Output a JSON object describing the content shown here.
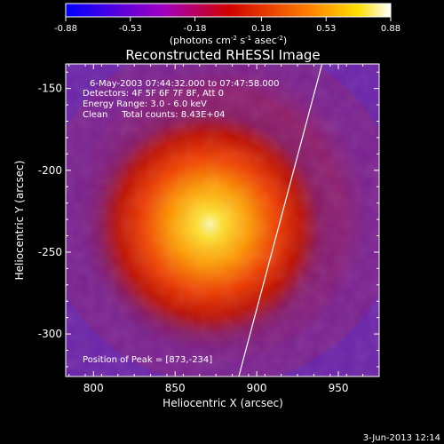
{
  "chart_data": {
    "type": "heatmap",
    "title": "Reconstructed RHESSI Image",
    "xlabel": "Heliocentric X (arcsec)",
    "ylabel": "Heliocentric Y (arcsec)",
    "xlim": [
      783,
      975
    ],
    "ylim": [
      -326,
      -135
    ],
    "x_ticks": [
      800,
      850,
      900,
      950
    ],
    "y_ticks": [
      -150,
      -200,
      -250,
      -300
    ],
    "colorbar": {
      "ticks": [
        -0.88,
        -0.53,
        -0.18,
        0.18,
        0.53,
        0.88
      ],
      "range": [
        -0.88,
        0.88
      ],
      "label": "(photons cm",
      "label_exp1": "-2",
      "label_mid": " s",
      "label_exp2": "-1",
      "label_mid2": " asec",
      "label_exp3": "-2",
      "label_end": ")"
    },
    "info_lines": [
      "6-May-2003 07:44:32.000 to 07:47:58.000",
      "Detectors: 4F 5F 6F 7F 8F, Att 0",
      "Energy Range: 3.0 - 6.0 keV",
      "Clean     Total counts: 8.43E+04"
    ],
    "peak_text": "Position of Peak = [873,-234]",
    "peak": [
      873,
      -234
    ],
    "limb_line": [
      [
        889,
        -326
      ],
      [
        940,
        -135
      ]
    ],
    "max_value": 0.88
  },
  "footer": {
    "date": "3-Jun-2013 12:14"
  }
}
